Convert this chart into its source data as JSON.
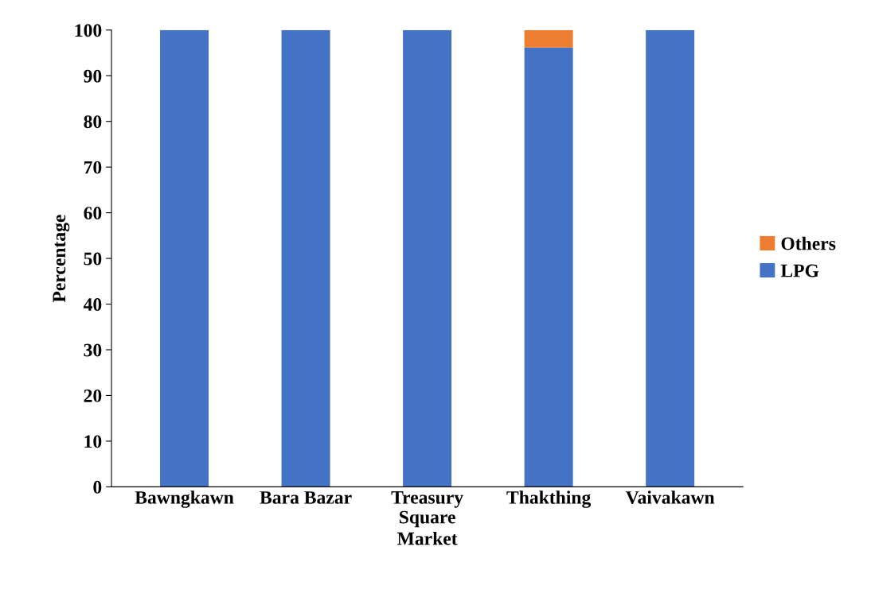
{
  "chart_data": {
    "type": "bar",
    "stacked": true,
    "xlabel": "Market",
    "ylabel": "Percentage",
    "categories": [
      "Bawngkawn",
      "Bara Bazar",
      "Treasury\nSquare",
      "Thakthing",
      "Vaivakawn"
    ],
    "series": [
      {
        "name": "LPG",
        "color": "#4472c4",
        "values": [
          100,
          100,
          100,
          96.2,
          100
        ]
      },
      {
        "name": "Others",
        "color": "#ed7d31",
        "values": [
          0,
          0,
          0,
          3.8,
          0
        ]
      }
    ],
    "ylim": [
      0,
      100
    ],
    "yticks": [
      0,
      10,
      20,
      30,
      40,
      50,
      60,
      70,
      80,
      90,
      100
    ],
    "grid": false,
    "legend": "right"
  }
}
